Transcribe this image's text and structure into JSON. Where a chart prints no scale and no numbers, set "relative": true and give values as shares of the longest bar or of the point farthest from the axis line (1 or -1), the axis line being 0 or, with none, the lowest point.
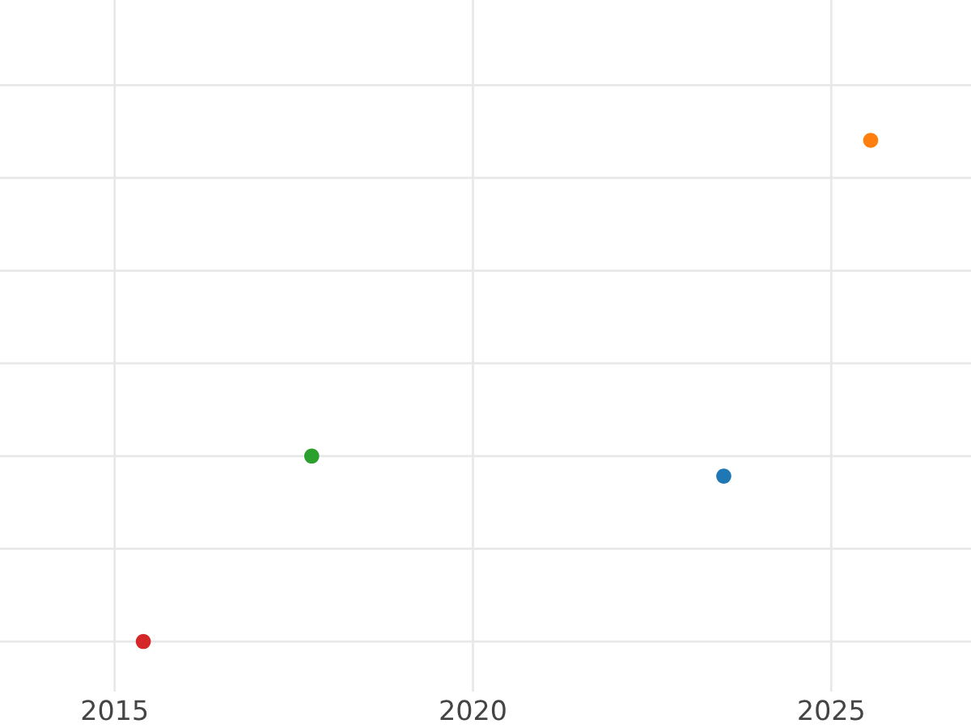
{
  "chart_data": {
    "type": "scatter",
    "relative": true,
    "x": [
      2023.5,
      2025.55,
      2017.75,
      2015.4
    ],
    "values": [
      0.33,
      1,
      0.37,
      0
    ],
    "colors": [
      "#1f77b4",
      "#ff7f0e",
      "#2ca02c",
      "#d62728"
    ],
    "xlim": [
      2013.4,
      2026.95
    ],
    "xticks": [
      2015,
      2020,
      2025
    ],
    "grid": true,
    "tick_labels": "x",
    "marker": "circle"
  }
}
